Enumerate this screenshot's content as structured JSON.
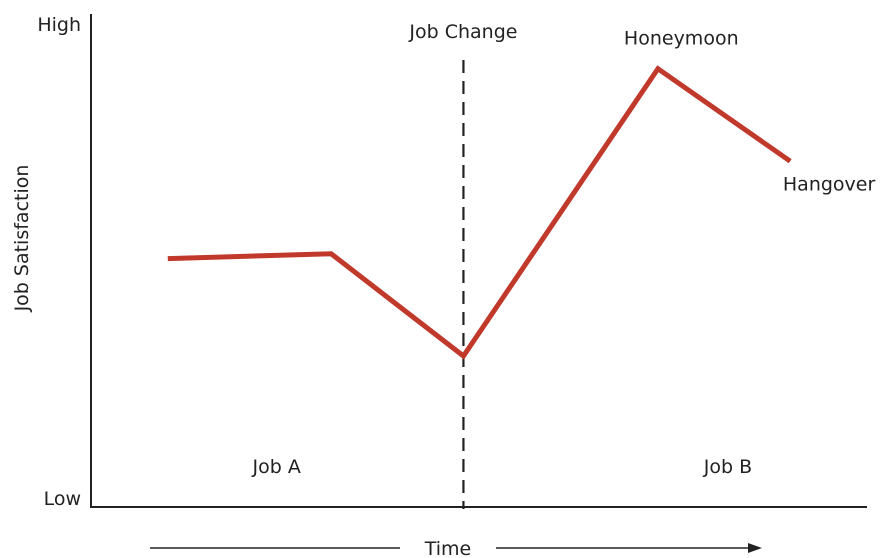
{
  "chart_data": {
    "type": "line",
    "title": "",
    "xlabel": "Time",
    "ylabel": "Job Satisfaction",
    "y_ticks": {
      "high": "High",
      "low": "Low"
    },
    "xlim": [
      0,
      100
    ],
    "ylim": [
      0,
      100
    ],
    "grid": false,
    "series": [
      {
        "name": "",
        "color": "#c0392b",
        "points": [
          {
            "x": 10,
            "y": 51
          },
          {
            "x": 31,
            "y": 52
          },
          {
            "x": 48,
            "y": 31
          },
          {
            "x": 73,
            "y": 90
          },
          {
            "x": 90,
            "y": 71
          }
        ]
      }
    ],
    "markers": [
      {
        "label": "Job Change",
        "x": 48
      }
    ],
    "region_labels": [
      {
        "label": "Job A",
        "x": 24,
        "y": 7
      },
      {
        "label": "Job B",
        "x": 82,
        "y": 7
      }
    ],
    "annotations": [
      {
        "label": "Honeymoon",
        "x": 76,
        "y": 95
      },
      {
        "label": "Hangover",
        "x": 95,
        "y": 65
      }
    ],
    "colors": {
      "line": "#c0392b",
      "axis": "#222222",
      "text": "#222222"
    }
  }
}
